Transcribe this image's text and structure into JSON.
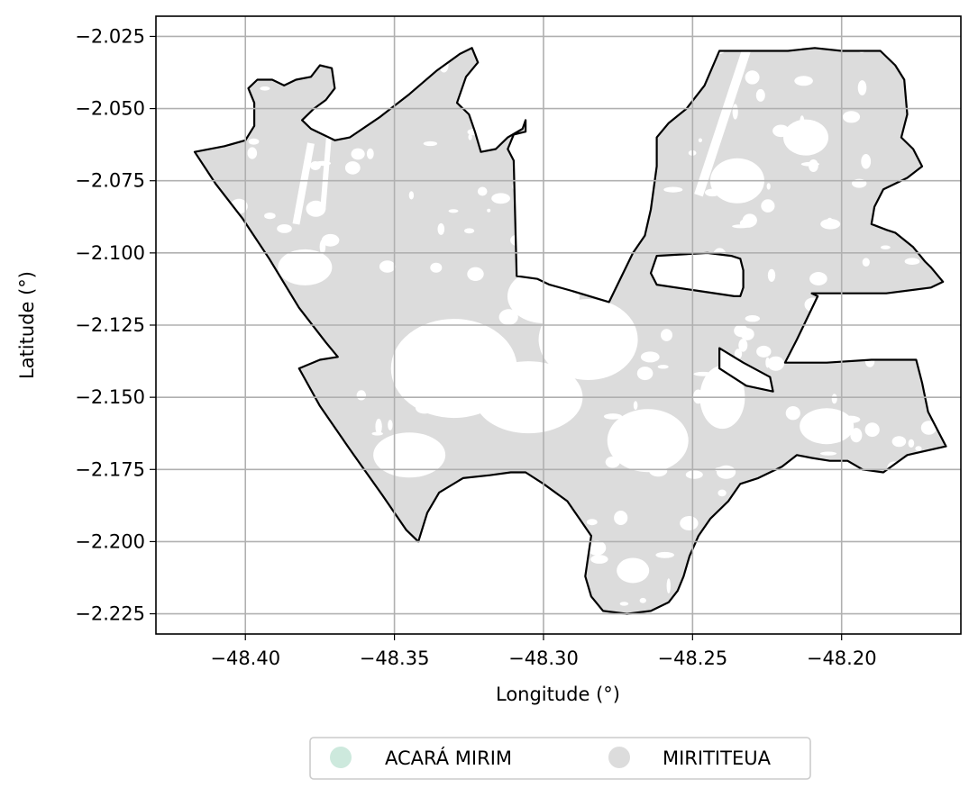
{
  "chart_data": {
    "type": "map",
    "xlabel": "Longitude (°)",
    "ylabel": "Latitude (°)",
    "xlim": [
      -48.43,
      -48.16
    ],
    "ylim": [
      -2.232,
      -2.018
    ],
    "xticks": [
      {
        "value": -48.4,
        "label": "−48.40"
      },
      {
        "value": -48.35,
        "label": "−48.35"
      },
      {
        "value": -48.3,
        "label": "−48.30"
      },
      {
        "value": -48.25,
        "label": "−48.25"
      },
      {
        "value": -48.2,
        "label": "−48.20"
      }
    ],
    "yticks": [
      {
        "value": -2.025,
        "label": "−2.025"
      },
      {
        "value": -2.05,
        "label": "−2.050"
      },
      {
        "value": -2.075,
        "label": "−2.075"
      },
      {
        "value": -2.1,
        "label": "−2.100"
      },
      {
        "value": -2.125,
        "label": "−2.125"
      },
      {
        "value": -2.15,
        "label": "−2.150"
      },
      {
        "value": -2.175,
        "label": "−2.175"
      },
      {
        "value": -2.2,
        "label": "−2.200"
      },
      {
        "value": -2.225,
        "label": "−2.225"
      }
    ],
    "grid": true,
    "legend_position": "bottom-center",
    "legend": [
      {
        "name": "ACARÁ MIRIM",
        "color": "#cde9dd"
      },
      {
        "name": "MIRITITEUA",
        "color": "#dcdcdc"
      }
    ],
    "boundary_color": "#000000",
    "fill_color": "#dcdcdc",
    "outline": [
      [
        -48.417,
        -2.065
      ],
      [
        -48.407,
        -2.063
      ],
      [
        -48.4,
        -2.061
      ],
      [
        -48.397,
        -2.056
      ],
      [
        -48.397,
        -2.048
      ],
      [
        -48.399,
        -2.043
      ],
      [
        -48.396,
        -2.04
      ],
      [
        -48.391,
        -2.04
      ],
      [
        -48.387,
        -2.042
      ],
      [
        -48.383,
        -2.04
      ],
      [
        -48.378,
        -2.039
      ],
      [
        -48.375,
        -2.035
      ],
      [
        -48.371,
        -2.036
      ],
      [
        -48.37,
        -2.043
      ],
      [
        -48.373,
        -2.047
      ],
      [
        -48.377,
        -2.05
      ],
      [
        -48.381,
        -2.054
      ],
      [
        -48.378,
        -2.057
      ],
      [
        -48.37,
        -2.061
      ],
      [
        -48.365,
        -2.06
      ],
      [
        -48.355,
        -2.053
      ],
      [
        -48.345,
        -2.045
      ],
      [
        -48.336,
        -2.037
      ],
      [
        -48.328,
        -2.031
      ],
      [
        -48.324,
        -2.029
      ],
      [
        -48.322,
        -2.034
      ],
      [
        -48.326,
        -2.039
      ],
      [
        -48.329,
        -2.048
      ],
      [
        -48.325,
        -2.052
      ],
      [
        -48.323,
        -2.058
      ],
      [
        -48.321,
        -2.065
      ],
      [
        -48.316,
        -2.064
      ],
      [
        -48.312,
        -2.06
      ],
      [
        -48.307,
        -2.057
      ],
      [
        -48.306,
        -2.054
      ],
      [
        -48.306,
        -2.058
      ],
      [
        -48.31,
        -2.059
      ],
      [
        -48.312,
        -2.064
      ],
      [
        -48.31,
        -2.068
      ],
      [
        -48.309,
        -2.108
      ],
      [
        -48.302,
        -2.109
      ],
      [
        -48.298,
        -2.111
      ],
      [
        -48.291,
        -2.113
      ],
      [
        -48.278,
        -2.117
      ],
      [
        -48.27,
        -2.1
      ],
      [
        -48.266,
        -2.094
      ],
      [
        -48.264,
        -2.085
      ],
      [
        -48.262,
        -2.07
      ],
      [
        -48.262,
        -2.06
      ],
      [
        -48.258,
        -2.055
      ],
      [
        -48.252,
        -2.05
      ],
      [
        -48.246,
        -2.042
      ],
      [
        -48.241,
        -2.03
      ],
      [
        -48.228,
        -2.03
      ],
      [
        -48.218,
        -2.03
      ],
      [
        -48.209,
        -2.029
      ],
      [
        -48.2,
        -2.03
      ],
      [
        -48.187,
        -2.03
      ],
      [
        -48.182,
        -2.035
      ],
      [
        -48.179,
        -2.04
      ],
      [
        -48.178,
        -2.052
      ],
      [
        -48.18,
        -2.06
      ],
      [
        -48.176,
        -2.064
      ],
      [
        -48.173,
        -2.07
      ],
      [
        -48.178,
        -2.074
      ],
      [
        -48.186,
        -2.078
      ],
      [
        -48.189,
        -2.084
      ],
      [
        -48.19,
        -2.09
      ],
      [
        -48.185,
        -2.092
      ],
      [
        -48.182,
        -2.093
      ],
      [
        -48.176,
        -2.098
      ],
      [
        -48.172,
        -2.103
      ],
      [
        -48.17,
        -2.105
      ],
      [
        -48.166,
        -2.11
      ],
      [
        -48.17,
        -2.112
      ],
      [
        -48.185,
        -2.114
      ],
      [
        -48.21,
        -2.114
      ],
      [
        -48.208,
        -2.115
      ],
      [
        -48.215,
        -2.13
      ],
      [
        -48.219,
        -2.138
      ],
      [
        -48.205,
        -2.138
      ],
      [
        -48.19,
        -2.137
      ],
      [
        -48.181,
        -2.137
      ],
      [
        -48.175,
        -2.137
      ],
      [
        -48.173,
        -2.145
      ],
      [
        -48.171,
        -2.155
      ],
      [
        -48.167,
        -2.163
      ],
      [
        -48.165,
        -2.167
      ],
      [
        -48.178,
        -2.17
      ],
      [
        -48.186,
        -2.176
      ],
      [
        -48.193,
        -2.175
      ],
      [
        -48.198,
        -2.172
      ],
      [
        -48.204,
        -2.172
      ],
      [
        -48.21,
        -2.171
      ],
      [
        -48.215,
        -2.17
      ],
      [
        -48.22,
        -2.174
      ],
      [
        -48.228,
        -2.178
      ],
      [
        -48.234,
        -2.18
      ],
      [
        -48.238,
        -2.186
      ],
      [
        -48.244,
        -2.192
      ],
      [
        -48.248,
        -2.198
      ],
      [
        -48.251,
        -2.205
      ],
      [
        -48.253,
        -2.212
      ],
      [
        -48.255,
        -2.217
      ],
      [
        -48.258,
        -2.221
      ],
      [
        -48.264,
        -2.224
      ],
      [
        -48.272,
        -2.225
      ],
      [
        -48.28,
        -2.224
      ],
      [
        -48.284,
        -2.219
      ],
      [
        -48.286,
        -2.212
      ],
      [
        -48.285,
        -2.205
      ],
      [
        -48.284,
        -2.198
      ],
      [
        -48.288,
        -2.192
      ],
      [
        -48.292,
        -2.186
      ],
      [
        -48.3,
        -2.18
      ],
      [
        -48.306,
        -2.176
      ],
      [
        -48.311,
        -2.176
      ],
      [
        -48.318,
        -2.177
      ],
      [
        -48.327,
        -2.178
      ],
      [
        -48.335,
        -2.183
      ],
      [
        -48.339,
        -2.19
      ],
      [
        -48.342,
        -2.2
      ],
      [
        -48.346,
        -2.196
      ],
      [
        -48.354,
        -2.184
      ],
      [
        -48.365,
        -2.168
      ],
      [
        -48.375,
        -2.153
      ],
      [
        -48.382,
        -2.14
      ],
      [
        -48.375,
        -2.137
      ],
      [
        -48.369,
        -2.136
      ],
      [
        -48.373,
        -2.131
      ],
      [
        -48.382,
        -2.119
      ],
      [
        -48.392,
        -2.102
      ],
      [
        -48.401,
        -2.088
      ],
      [
        -48.41,
        -2.076
      ],
      [
        -48.417,
        -2.065
      ]
    ],
    "holes": [
      [
        [
          -48.262,
          -2.101
        ],
        [
          -48.245,
          -2.1
        ],
        [
          -48.237,
          -2.101
        ],
        [
          -48.234,
          -2.102
        ],
        [
          -48.233,
          -2.106
        ],
        [
          -48.233,
          -2.112
        ],
        [
          -48.234,
          -2.115
        ],
        [
          -48.236,
          -2.115
        ],
        [
          -48.249,
          -2.113
        ],
        [
          -48.262,
          -2.111
        ],
        [
          -48.264,
          -2.107
        ],
        [
          -48.262,
          -2.101
        ]
      ],
      [
        [
          -48.241,
          -2.133
        ],
        [
          -48.233,
          -2.138
        ],
        [
          -48.224,
          -2.143
        ],
        [
          -48.223,
          -2.148
        ],
        [
          -48.232,
          -2.146
        ],
        [
          -48.241,
          -2.14
        ],
        [
          -48.241,
          -2.133
        ]
      ]
    ]
  }
}
